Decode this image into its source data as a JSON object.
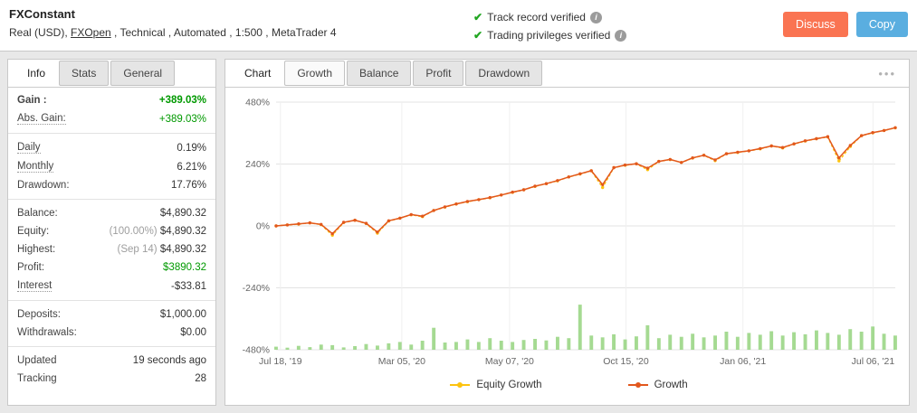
{
  "header": {
    "title": "FXConstant",
    "subtitle": {
      "pre": "Real (USD), ",
      "link": "FXOpen",
      "post": " , Technical , Automated , 1:500 , MetaTrader 4"
    },
    "verifications": [
      {
        "label": "Track record verified"
      },
      {
        "label": "Trading privileges verified"
      }
    ],
    "buttons": {
      "discuss": "Discuss",
      "copy": "Copy"
    }
  },
  "sidebar": {
    "tabs": [
      {
        "label": "Info",
        "active": true
      },
      {
        "label": "Stats",
        "active": false
      },
      {
        "label": "General",
        "active": false
      }
    ],
    "rows": [
      {
        "label": "Gain :",
        "value": "+389.03%"
      },
      {
        "label": "Abs. Gain:",
        "value": "+389.03%"
      },
      {
        "label": "Daily",
        "value": "0.19%"
      },
      {
        "label": "Monthly",
        "value": "6.21%"
      },
      {
        "label": "Drawdown:",
        "value": "17.76%"
      },
      {
        "label": "Balance:",
        "value": "$4,890.32"
      },
      {
        "label": "Equity:",
        "prefix": "(100.00%)",
        "value": "$4,890.32"
      },
      {
        "label": "Highest:",
        "prefix": "(Sep 14)",
        "value": "$4,890.32"
      },
      {
        "label": "Profit:",
        "value": "$3890.32"
      },
      {
        "label": "Interest",
        "value": "-$33.81"
      },
      {
        "label": "Deposits:",
        "value": "$1,000.00"
      },
      {
        "label": "Withdrawals:",
        "value": "$0.00"
      },
      {
        "label": "Updated",
        "value": "19 seconds ago"
      },
      {
        "label": "Tracking",
        "value": "28"
      }
    ]
  },
  "main": {
    "tabs": [
      {
        "label": "Chart",
        "active": true
      },
      {
        "label": "Growth",
        "selected": true
      },
      {
        "label": "Balance"
      },
      {
        "label": "Profit"
      },
      {
        "label": "Drawdown"
      }
    ]
  },
  "colors": {
    "positive_green": "#009900",
    "growth_line": "#e2571d",
    "equity_line": "#fdc30f",
    "volume_bars": "#8fd177",
    "discuss_button": "#fa7452",
    "copy_button": "#5aaee0",
    "verified_check": "#21a621"
  },
  "chart_data": {
    "type": "line",
    "title": "Growth",
    "ylim": [
      -480,
      480
    ],
    "y_ticks": [
      480,
      240,
      0,
      -240,
      -480
    ],
    "y_suffix": "%",
    "grid": true,
    "legend_position": "bottom",
    "x_ticks": [
      {
        "label": "Jul 18, '19",
        "pos": 0.007
      },
      {
        "label": "Mar 05, '20",
        "pos": 0.203
      },
      {
        "label": "May 07, '20",
        "pos": 0.377
      },
      {
        "label": "Oct 15, '20",
        "pos": 0.565
      },
      {
        "label": "Jan 06, '21",
        "pos": 0.754
      },
      {
        "label": "Jul 06, '21",
        "pos": 0.964
      }
    ],
    "series": [
      {
        "name": "Equity Growth",
        "color": "#fdc30f",
        "values": [
          0,
          4,
          7,
          12,
          5,
          -36,
          13,
          22,
          9,
          -28,
          19,
          30,
          43,
          36,
          60,
          73,
          85,
          94,
          102,
          109,
          120,
          130,
          140,
          153,
          164,
          175,
          190,
          201,
          214,
          149,
          226,
          235,
          241,
          218,
          250,
          257,
          246,
          263,
          274,
          253,
          280,
          285,
          291,
          299,
          310,
          302,
          318,
          329,
          338,
          345,
          252,
          308,
          350,
          361,
          370,
          380
        ]
      },
      {
        "name": "Growth",
        "color": "#e2571d",
        "values": [
          0,
          4,
          8,
          12,
          6,
          -30,
          14,
          22,
          10,
          -24,
          20,
          30,
          44,
          38,
          60,
          74,
          85,
          95,
          102,
          110,
          120,
          131,
          140,
          154,
          164,
          176,
          190,
          202,
          214,
          160,
          226,
          236,
          241,
          224,
          250,
          258,
          246,
          264,
          274,
          256,
          280,
          286,
          291,
          300,
          310,
          304,
          318,
          330,
          338,
          346,
          264,
          312,
          350,
          362,
          370,
          381
        ]
      }
    ],
    "bars": {
      "color": "#8fd177",
      "baseline": -480,
      "values": [
        12,
        8,
        15,
        10,
        20,
        18,
        9,
        14,
        22,
        16,
        25,
        30,
        20,
        35,
        85,
        28,
        30,
        40,
        30,
        45,
        35,
        30,
        38,
        42,
        36,
        50,
        45,
        175,
        55,
        48,
        60,
        40,
        52,
        95,
        45,
        58,
        50,
        62,
        48,
        55,
        70,
        50,
        65,
        58,
        72,
        55,
        68,
        60,
        75,
        65,
        58,
        80,
        70,
        90,
        62,
        55
      ]
    }
  }
}
